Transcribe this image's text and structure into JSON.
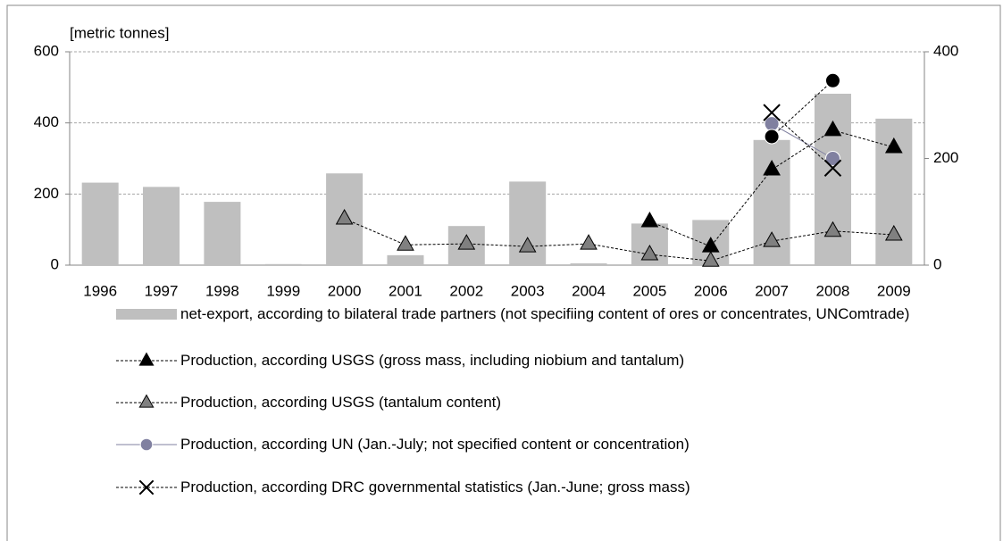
{
  "chart_data": {
    "type": "bar",
    "ylabel": "[metric tonnes]",
    "categories": [
      "1996",
      "1997",
      "1998",
      "1999",
      "2000",
      "2001",
      "2002",
      "2003",
      "2004",
      "2005",
      "2006",
      "2007",
      "2008",
      "2009"
    ],
    "ylim": [
      0,
      600
    ],
    "yticks": [
      0,
      200,
      400,
      600
    ],
    "y2lim": [
      0,
      400
    ],
    "y2ticks": [
      0,
      200,
      400
    ],
    "grid": true,
    "series": [
      {
        "name": "net-export, according to bilateral trade partners (not specifiing content of ores or concentrates, UNComtrade)",
        "type": "bar",
        "color": "#bfbfbf",
        "values": [
          232,
          220,
          178,
          3,
          258,
          28,
          110,
          235,
          5,
          117,
          127,
          352,
          482,
          412
        ]
      },
      {
        "name": "Production, according USGS (gross mass, including niobium and tantalum)",
        "type": "line",
        "axis": "y2",
        "marker": "triangle",
        "color": "#000000",
        "line_style": "dashed",
        "values": [
          null,
          null,
          null,
          null,
          null,
          null,
          null,
          null,
          null,
          82,
          35,
          179,
          253,
          221
        ]
      },
      {
        "name": "Production, according USGS (tantalum content)",
        "type": "line",
        "axis": "y2",
        "marker": "triangle",
        "color": "#808080",
        "line_style": "dashed",
        "values": [
          null,
          null,
          null,
          null,
          87,
          38,
          40,
          35,
          40,
          20,
          8,
          45,
          64,
          57
        ]
      },
      {
        "name": "Production, according UN (Jan.-July; not specified content or concentration)",
        "type": "line",
        "axis": "y2",
        "marker": "circle",
        "color": "#8080a0",
        "line_style": "solid",
        "values": [
          null,
          null,
          null,
          null,
          null,
          null,
          null,
          null,
          null,
          null,
          null,
          265,
          200,
          null
        ]
      },
      {
        "name": "Production, according DRC governmental statistics (Jan.-June; gross mass)",
        "type": "line",
        "axis": "y2",
        "marker": "x",
        "color": "#000000",
        "line_style": "dashed",
        "values": [
          null,
          null,
          null,
          null,
          null,
          null,
          null,
          null,
          null,
          null,
          null,
          286,
          182,
          null
        ]
      },
      {
        "type": "line",
        "axis": "y2",
        "marker": "circle",
        "color": "#000000",
        "line_style": "dashed",
        "values": [
          null,
          null,
          null,
          null,
          null,
          null,
          null,
          null,
          null,
          null,
          null,
          241,
          346,
          null
        ]
      }
    ]
  }
}
